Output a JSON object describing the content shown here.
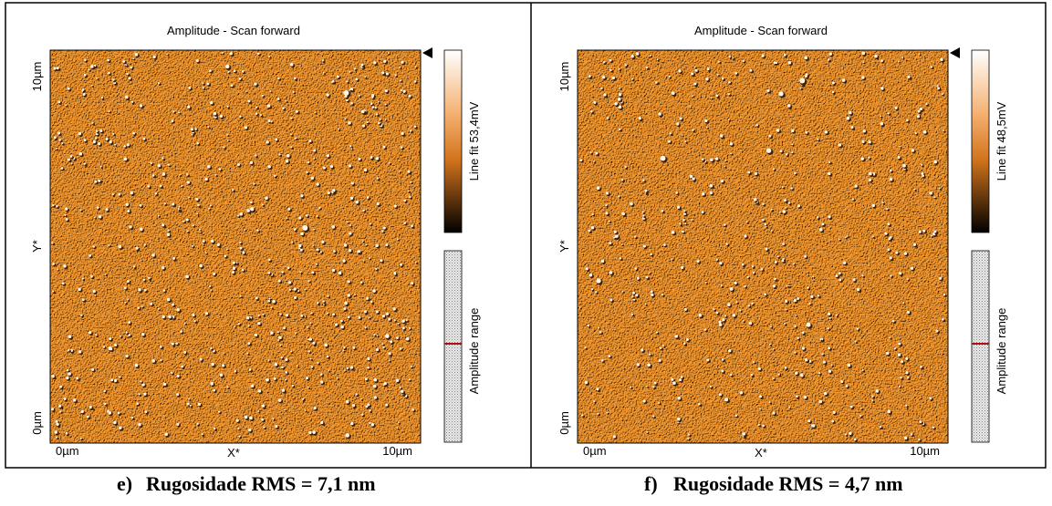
{
  "panels": [
    {
      "title": "Amplitude - Scan forward",
      "y_top": "10µm",
      "y_bottom": "0µm",
      "y_label": "Y*",
      "x_left": "0µm",
      "x_right": "10µm",
      "x_label": "X*",
      "colorbar_label": "Line fit 53,4mV",
      "range_label": "Amplitude range",
      "caption_letter": "e)",
      "caption": "Rugosidade RMS = 7,1 nm"
    },
    {
      "title": "Amplitude - Scan forward",
      "y_top": "10µm",
      "y_bottom": "0µm",
      "y_label": "Y*",
      "x_left": "0µm",
      "x_right": "10µm",
      "x_label": "X*",
      "colorbar_label": "Line fit 48,5mV",
      "range_label": "Amplitude range",
      "caption_letter": "f)",
      "caption": "Rugosidade RMS = 4,7 nm"
    }
  ]
}
